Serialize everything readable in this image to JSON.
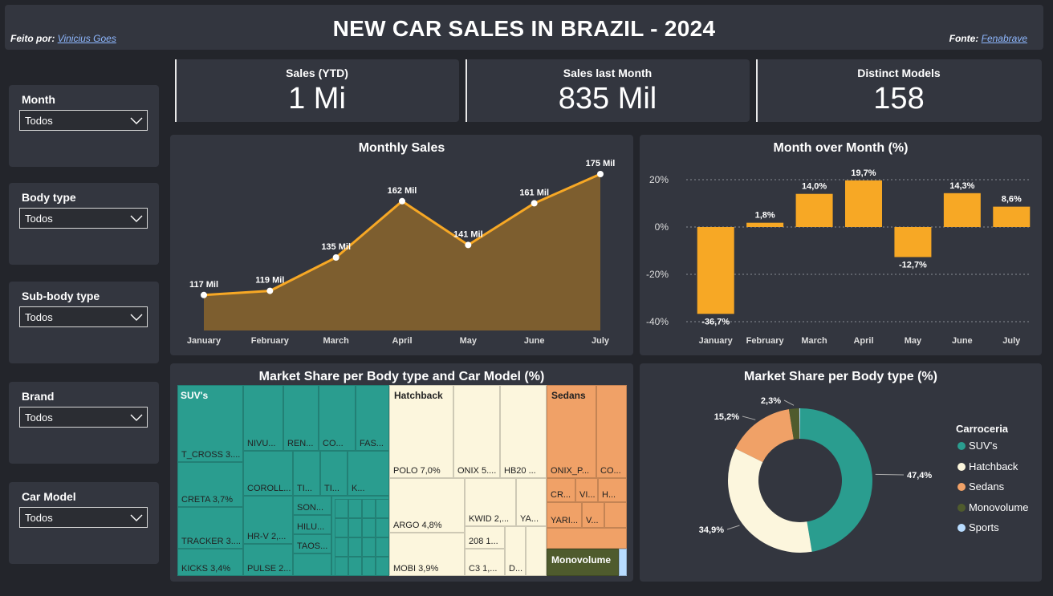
{
  "header": {
    "title": "NEW CAR SALES IN BRAZIL - 2024",
    "author_prefix": "Feito por:",
    "author_link": "Vinicius Goes",
    "source_prefix": "Fonte:",
    "source_link": "Fenabrave"
  },
  "kpis": [
    {
      "label": "Sales (YTD)",
      "value": "1 Mi"
    },
    {
      "label": "Sales last Month",
      "value": "835 Mil"
    },
    {
      "label": "Distinct Models",
      "value": "158"
    }
  ],
  "slicers": [
    {
      "label": "Month",
      "value": "Todos"
    },
    {
      "label": "Body type",
      "value": "Todos"
    },
    {
      "label": "Sub-body type",
      "value": "Todos"
    },
    {
      "label": "Brand",
      "value": "Todos"
    },
    {
      "label": "Car Model",
      "value": "Todos"
    }
  ],
  "colors": {
    "background": "#23252b",
    "panel": "#33363f",
    "accent_orange": "#f7a825",
    "area_fill": "#7d5e2f",
    "suv": "#2a9d8f",
    "hatchback": "#fcf6dd",
    "sedans": "#f0a167",
    "monovolume": "#4f5b2d",
    "sports": "#b8dcff"
  },
  "chart_data": [
    {
      "id": "monthly_sales",
      "type": "area",
      "title": "Monthly Sales",
      "categories": [
        "January",
        "February",
        "March",
        "April",
        "May",
        "June",
        "July"
      ],
      "values": [
        117,
        119,
        135,
        162,
        141,
        161,
        175
      ],
      "data_labels": [
        "117 Mil",
        "119 Mil",
        "135 Mil",
        "162 Mil",
        "141 Mil",
        "161 Mil",
        "175 Mil"
      ],
      "unit": "Mil",
      "ylim": [
        100,
        180
      ],
      "grid": false
    },
    {
      "id": "mom",
      "type": "bar",
      "title": "Month over Month (%)",
      "categories": [
        "January",
        "February",
        "March",
        "April",
        "May",
        "June",
        "July"
      ],
      "values": [
        -36.7,
        1.8,
        14.0,
        19.7,
        -12.7,
        14.3,
        8.6
      ],
      "data_labels": [
        "-36,7%",
        "1,8%",
        "14,0%",
        "19,7%",
        "-12,7%",
        "14,3%",
        "8,6%"
      ],
      "yticks": [
        "20%",
        "0%",
        "-20%",
        "-40%"
      ],
      "ytick_values": [
        20,
        0,
        -20,
        -40
      ],
      "ylim": [
        -42,
        25
      ],
      "grid": true
    },
    {
      "id": "treemap",
      "type": "heatmap",
      "title": "Market Share per Body type and Car Model (%)",
      "groups": [
        {
          "name": "SUV's",
          "color": "#2a9d8f",
          "items": [
            "T_CROSS 3....",
            "CRETA 3,7%",
            "TRACKER 3....",
            "KICKS 3,4%",
            "NIVU...",
            "REN...",
            "CO...",
            "FAS...",
            "COROLL...",
            "TI...",
            "TI...",
            "HR-V 2,...",
            "SON...",
            "K...",
            "HILU...",
            "TAOS...",
            "PULSE 2..."
          ]
        },
        {
          "name": "Hatchback",
          "color": "#fcf6dd",
          "items": [
            "POLO 7,0%",
            "ONIX 5....",
            "HB20 ...",
            "ARGO 4,8%",
            "KWID 2,...",
            "YA...",
            "208 1...",
            "D...",
            "MOBI 3,9%",
            "C3 1,..."
          ]
        },
        {
          "name": "Sedans",
          "color": "#f0a167",
          "items": [
            "ONIX_P...",
            "CO...",
            "CR...",
            "VI...",
            "H...",
            "YARI...",
            "V..."
          ]
        },
        {
          "name": "Monovolume",
          "color": "#4f5b2d",
          "items": []
        }
      ]
    },
    {
      "id": "donut",
      "type": "pie",
      "title": "Market Share per Body type (%)",
      "legend_title": "Carroceria",
      "legend_position": "right",
      "series": [
        {
          "name": "SUV's",
          "value": 47.4,
          "label": "47,4%",
          "color": "#2a9d8f"
        },
        {
          "name": "Hatchback",
          "value": 34.9,
          "label": "34,9%",
          "color": "#fcf6dd"
        },
        {
          "name": "Sedans",
          "value": 15.2,
          "label": "15,2%",
          "color": "#f0a167"
        },
        {
          "name": "Monovolume",
          "value": 2.3,
          "label": "2,3%",
          "color": "#4f5b2d"
        },
        {
          "name": "Sports",
          "value": 0.2,
          "label": "",
          "color": "#b8dcff"
        }
      ]
    }
  ]
}
